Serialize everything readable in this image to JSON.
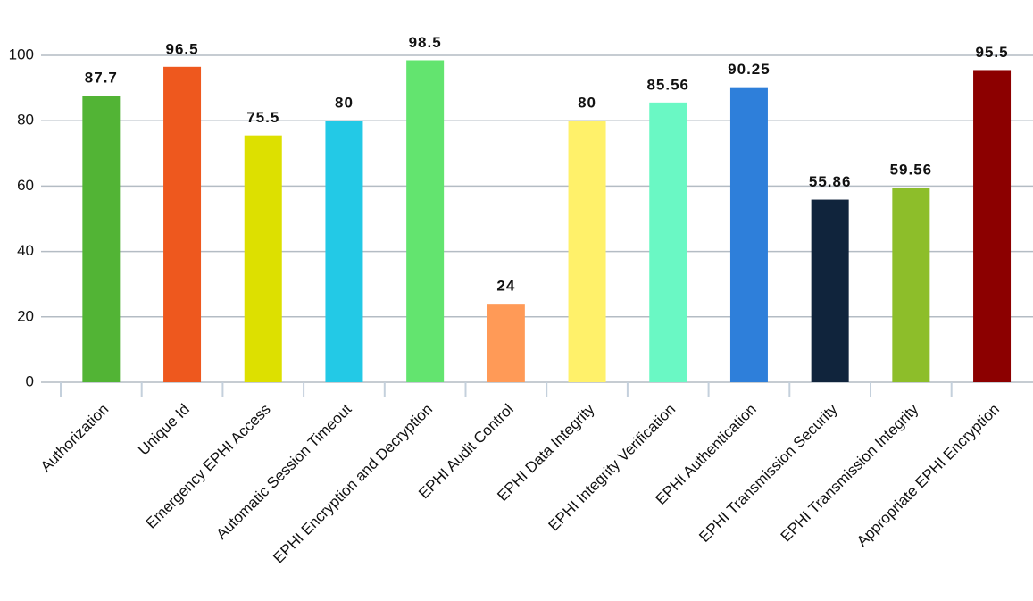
{
  "chart_data": {
    "type": "bar",
    "categories": [
      "Authorization",
      "Unique Id",
      "Emergency EPHI Access",
      "Automatic Session Timeout",
      "EPHI Encryption and Decryption",
      "EPHI Audit Control",
      "EPHI Data Integrity",
      "EPHI Integrity Verification",
      "EPHI Authentication",
      "EPHI Transmission Security",
      "EPHI Transmission Integrity",
      "Appropriate EPHI Encryption"
    ],
    "values": [
      87.7,
      96.5,
      75.5,
      80,
      98.5,
      24,
      80,
      85.56,
      90.25,
      55.86,
      59.56,
      95.5
    ],
    "colors": [
      "#52b435",
      "#ee581e",
      "#dde000",
      "#23c9e6",
      "#63e46f",
      "#ff9a57",
      "#fff16a",
      "#6af8c4",
      "#2e7fda",
      "#10243c",
      "#8dbe2a",
      "#8c0000"
    ],
    "ylim": [
      0,
      100
    ],
    "yticks": [
      0,
      20,
      40,
      60,
      80,
      100
    ],
    "grid": true
  }
}
